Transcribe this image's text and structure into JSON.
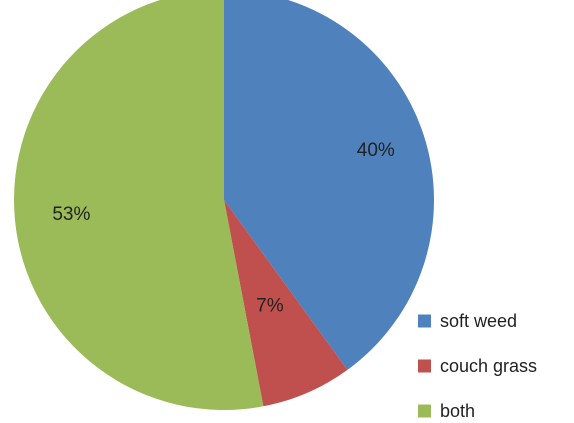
{
  "chart_data": {
    "type": "pie",
    "title": "",
    "categories": [
      "soft weed",
      "couch grass",
      "both"
    ],
    "values": [
      40,
      7,
      53
    ],
    "value_labels": [
      "40%",
      "7%",
      "53%"
    ],
    "colors": [
      "#4f81bd",
      "#c0504d",
      "#9bbb59"
    ],
    "start_angle_deg": 0,
    "direction": "clockwise",
    "legend": {
      "placement": "right-bottom",
      "entries": [
        "soft weed",
        "couch grass",
        "both"
      ]
    }
  }
}
